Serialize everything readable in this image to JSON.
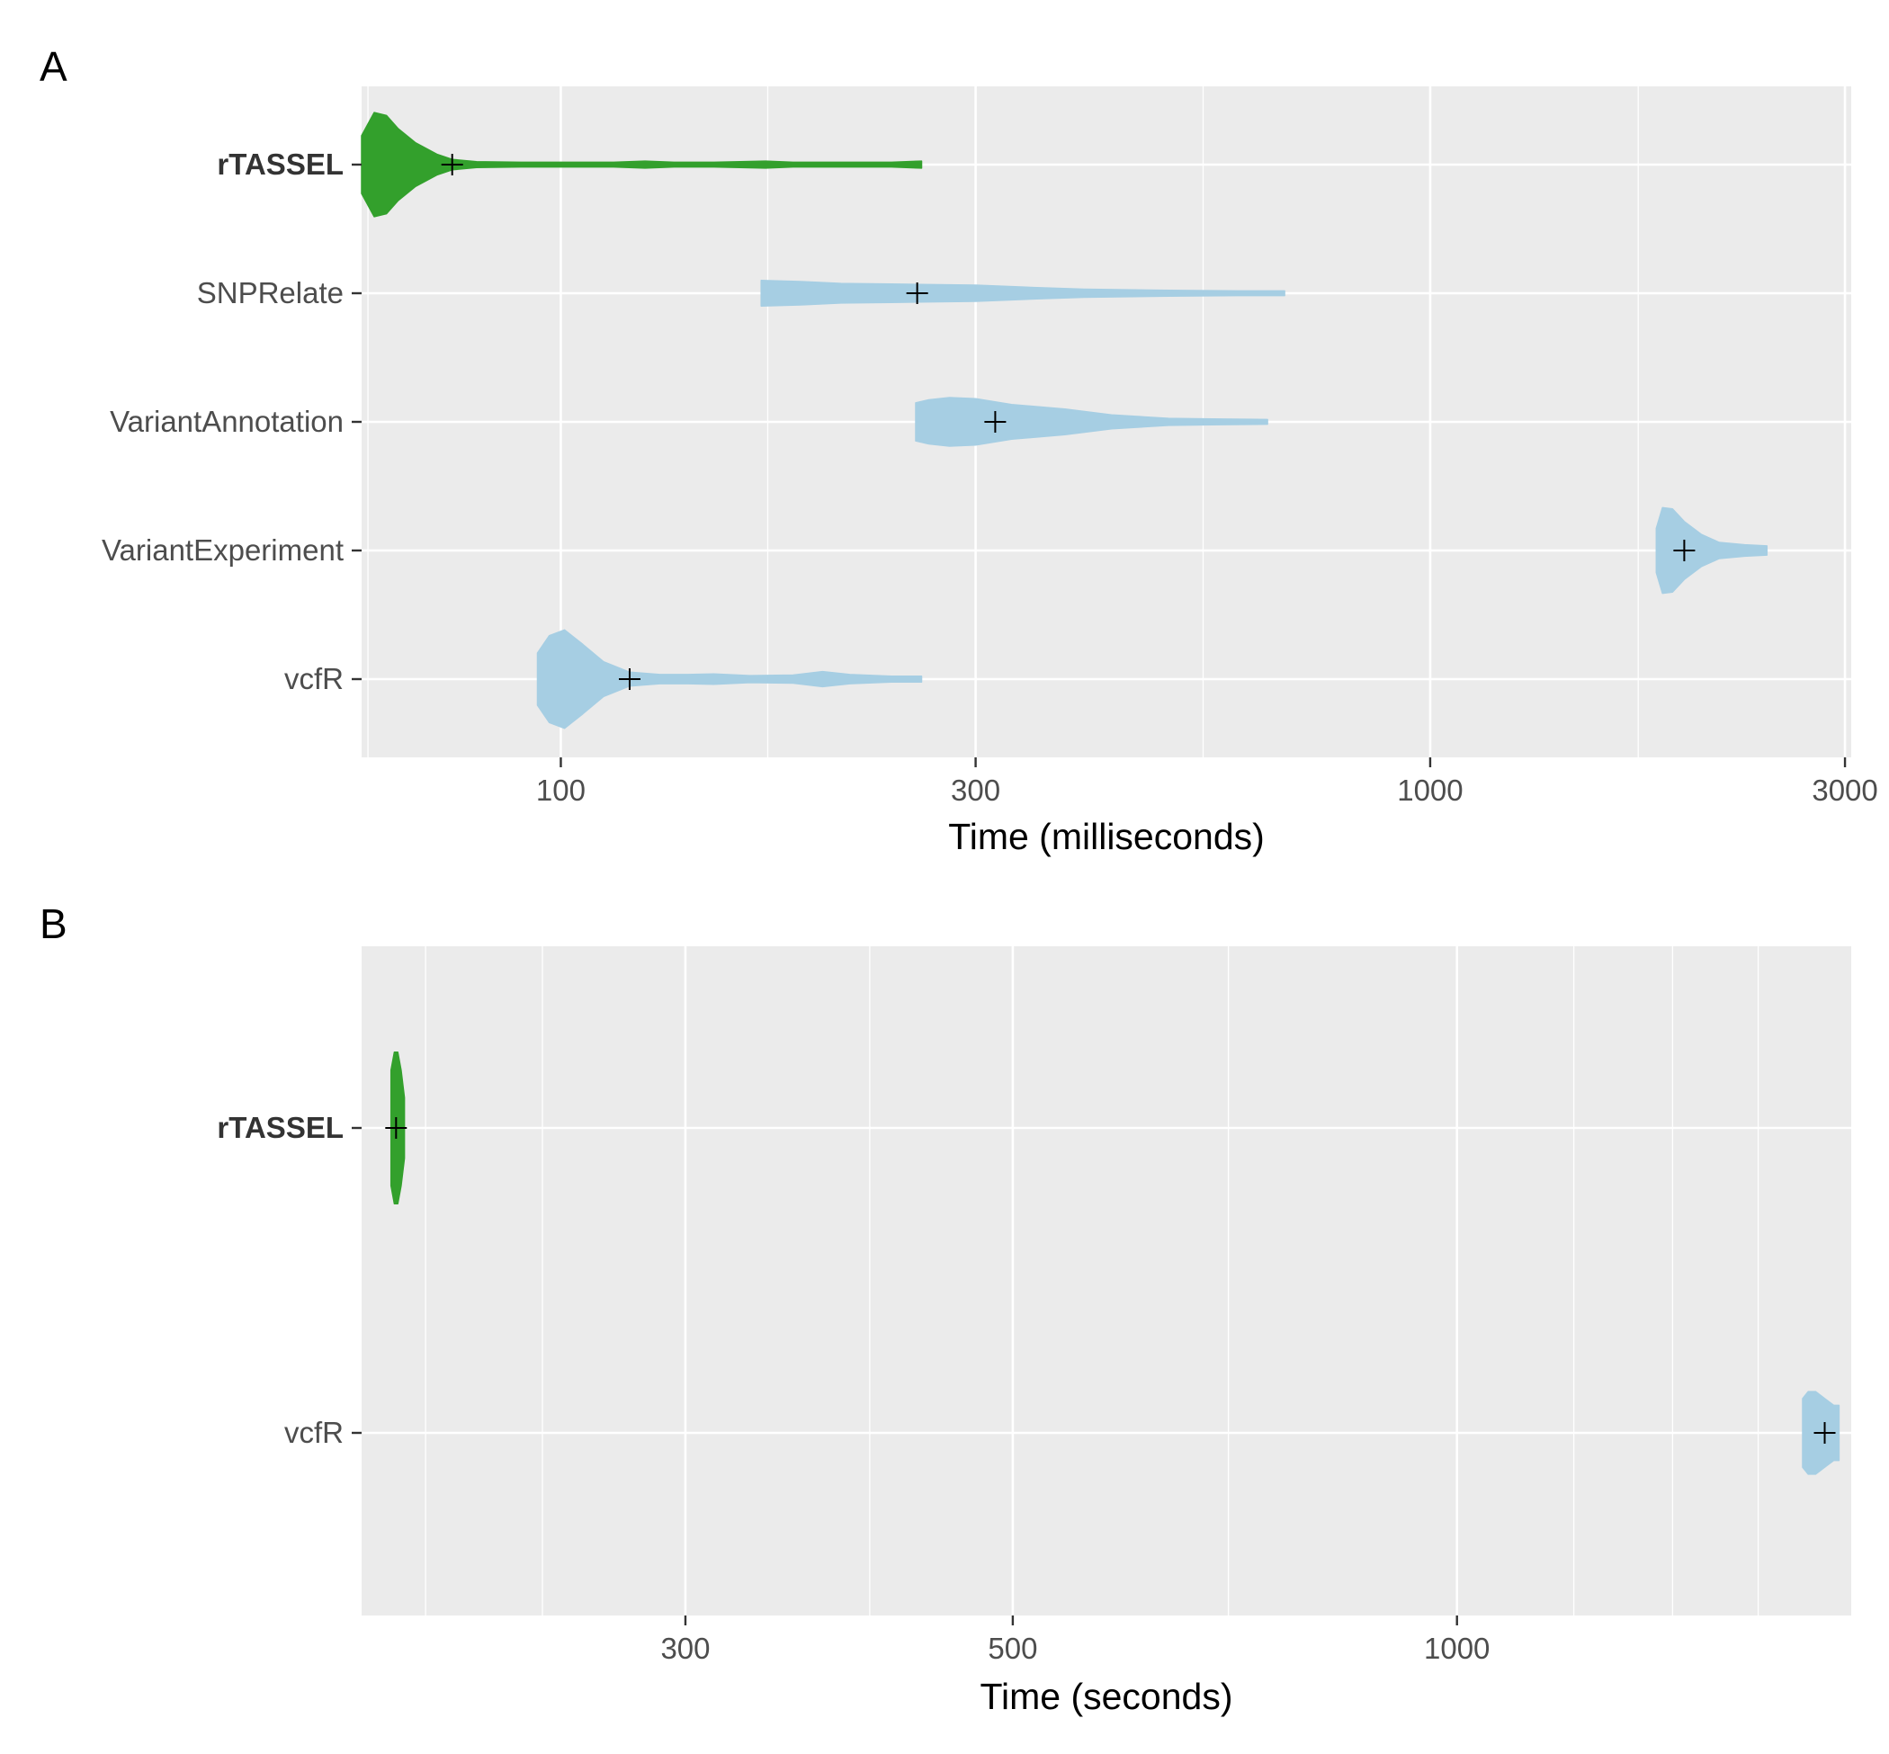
{
  "colors": {
    "highlight": "#33a02c",
    "other": "#a6cee3",
    "panel_background": "#ebebeb",
    "grid": "#ffffff"
  },
  "chart_data": [
    {
      "type": "violin",
      "panel_label": "A",
      "orientation": "horizontal",
      "xlabel": "Time (milliseconds)",
      "x_scale": "log10",
      "xlim": [
        59,
        3050
      ],
      "x_ticks": [
        100,
        300,
        1000,
        3000
      ],
      "x_tick_labels": [
        "100",
        "300",
        "1000",
        "3000"
      ],
      "x_minor_grid": [
        60,
        173,
        548,
        1735
      ],
      "categories": [
        "rTASSEL",
        "SNPRelate",
        "VariantAnnotation",
        "VariantExperiment",
        "vcfR"
      ],
      "bold_categories": [
        "rTASSEL"
      ],
      "grid": true,
      "series": [
        {
          "category": "rTASSEL",
          "color": "highlight",
          "mean": 75,
          "density": [
            [
              59,
              0.5
            ],
            [
              61,
              0.9
            ],
            [
              63,
              0.85
            ],
            [
              65,
              0.62
            ],
            [
              68,
              0.38
            ],
            [
              72,
              0.18
            ],
            [
              75,
              0.09
            ],
            [
              80,
              0.05
            ],
            [
              90,
              0.04
            ],
            [
              100,
              0.04
            ],
            [
              115,
              0.04
            ],
            [
              125,
              0.06
            ],
            [
              135,
              0.04
            ],
            [
              150,
              0.04
            ],
            [
              172,
              0.06
            ],
            [
              185,
              0.04
            ],
            [
              210,
              0.04
            ],
            [
              240,
              0.04
            ],
            [
              260,
              0.06
            ]
          ]
        },
        {
          "category": "SNPRelate",
          "color": "other",
          "mean": 257,
          "density": [
            [
              170,
              0.22
            ],
            [
              190,
              0.2
            ],
            [
              210,
              0.17
            ],
            [
              240,
              0.16
            ],
            [
              260,
              0.15
            ],
            [
              300,
              0.14
            ],
            [
              350,
              0.1
            ],
            [
              400,
              0.07
            ],
            [
              500,
              0.05
            ],
            [
              600,
              0.04
            ],
            [
              680,
              0.04
            ]
          ]
        },
        {
          "category": "VariantAnnotation",
          "color": "other",
          "mean": 316,
          "density": [
            [
              256,
              0.33
            ],
            [
              265,
              0.38
            ],
            [
              280,
              0.42
            ],
            [
              300,
              0.4
            ],
            [
              330,
              0.3
            ],
            [
              380,
              0.22
            ],
            [
              430,
              0.12
            ],
            [
              500,
              0.06
            ],
            [
              560,
              0.05
            ],
            [
              650,
              0.04
            ]
          ]
        },
        {
          "category": "VariantExperiment",
          "color": "other",
          "mean": 1960,
          "density": [
            [
              1820,
              0.38
            ],
            [
              1850,
              0.74
            ],
            [
              1900,
              0.72
            ],
            [
              1960,
              0.5
            ],
            [
              2050,
              0.28
            ],
            [
              2150,
              0.14
            ],
            [
              2300,
              0.1
            ],
            [
              2440,
              0.08
            ]
          ]
        },
        {
          "category": "vcfR",
          "color": "other",
          "mean": 120,
          "density": [
            [
              94,
              0.45
            ],
            [
              97,
              0.75
            ],
            [
              101,
              0.85
            ],
            [
              106,
              0.6
            ],
            [
              112,
              0.3
            ],
            [
              120,
              0.12
            ],
            [
              130,
              0.08
            ],
            [
              140,
              0.08
            ],
            [
              150,
              0.09
            ],
            [
              165,
              0.06
            ],
            [
              185,
              0.07
            ],
            [
              200,
              0.13
            ],
            [
              215,
              0.08
            ],
            [
              240,
              0.05
            ],
            [
              260,
              0.05
            ]
          ]
        }
      ]
    },
    {
      "type": "violin",
      "panel_label": "B",
      "orientation": "horizontal",
      "xlabel": "Time (seconds)",
      "x_scale": "log10",
      "xlim": [
        181,
        1850
      ],
      "x_ticks": [
        300,
        500,
        1000
      ],
      "x_tick_labels": [
        "300",
        "500",
        "1000"
      ],
      "x_minor_grid": [
        240,
        400,
        700,
        1400
      ],
      "x_extra_grid": [
        200,
        1200,
        1600
      ],
      "categories": [
        "rTASSEL",
        "vcfR"
      ],
      "bold_categories": [
        "rTASSEL"
      ],
      "grid": true,
      "series": [
        {
          "category": "rTASSEL",
          "color": "highlight",
          "mean": 191,
          "density": [
            [
              189.5,
              0.42
            ],
            [
              190.5,
              0.55
            ],
            [
              191.5,
              0.55
            ],
            [
              192.5,
              0.42
            ],
            [
              193.5,
              0.22
            ]
          ]
        },
        {
          "category": "vcfR",
          "color": "other",
          "mean": 1775,
          "density": [
            [
              1715,
              0.25
            ],
            [
              1730,
              0.3
            ],
            [
              1750,
              0.3
            ],
            [
              1780,
              0.24
            ],
            [
              1800,
              0.2
            ],
            [
              1815,
              0.2
            ]
          ]
        }
      ]
    }
  ]
}
